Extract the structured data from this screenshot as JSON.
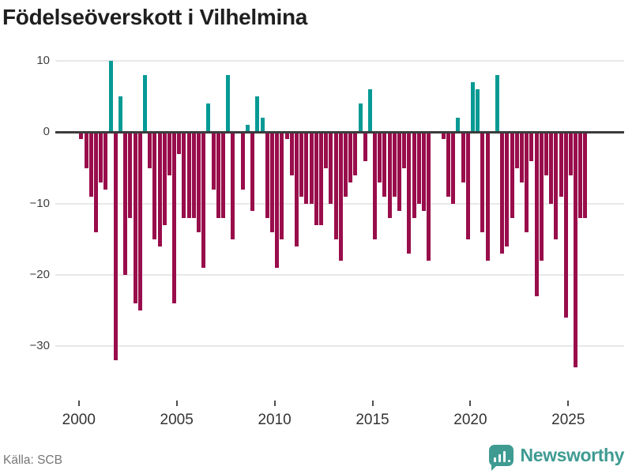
{
  "title": "Födelseöverskott i Vilhelmina",
  "source": "Källa: SCB",
  "logo": {
    "text": "Newsworthy"
  },
  "colors": {
    "positive": "#069a95",
    "negative": "#990d4b",
    "grid": "#e8e8e8",
    "zero_line": "#3c3c3c",
    "logo_teal": "#3f9b92"
  },
  "chart_data": {
    "type": "bar",
    "title": "Födelseöverskott i Vilhelmina",
    "x_unit": "quarter",
    "start_quarter": "2000Q1",
    "end_quarter": "2025Q4",
    "grid": true,
    "ylim": [
      -37.4,
      10.8
    ],
    "y_ticks": [
      10,
      0,
      -10,
      -20,
      -30
    ],
    "x_ticks": [
      2000,
      2005,
      2010,
      2015,
      2020,
      2025
    ],
    "values": [
      -1,
      -5,
      -9,
      -14,
      -7,
      -8,
      10,
      -32,
      5,
      -20,
      -12,
      -24,
      -25,
      8,
      -5,
      -15,
      -16,
      -13,
      -6,
      -24,
      -3,
      -12,
      -12,
      -12,
      -14,
      -19,
      4,
      -8,
      -12,
      -12,
      8,
      -15,
      0,
      -8,
      1,
      -11,
      5,
      2,
      -12,
      -14,
      -19,
      -15,
      -1,
      -6,
      -16,
      -9,
      -10,
      -10,
      -13,
      -13,
      -5,
      -10,
      -15,
      -18,
      -9,
      -7,
      -6,
      4,
      -4,
      6,
      -15,
      -7,
      -9,
      -12,
      -9,
      -11,
      -5,
      -17,
      -12,
      -10,
      -11,
      -18,
      0,
      0,
      -1,
      -9,
      -10,
      2,
      -7,
      -15,
      7,
      6,
      -14,
      -18,
      0,
      8,
      -17,
      -16,
      -12,
      -5,
      -7,
      -14,
      -4,
      -23,
      -18,
      -6,
      -10,
      -15,
      -9,
      -26,
      -6,
      -33,
      -12,
      -12
    ]
  }
}
